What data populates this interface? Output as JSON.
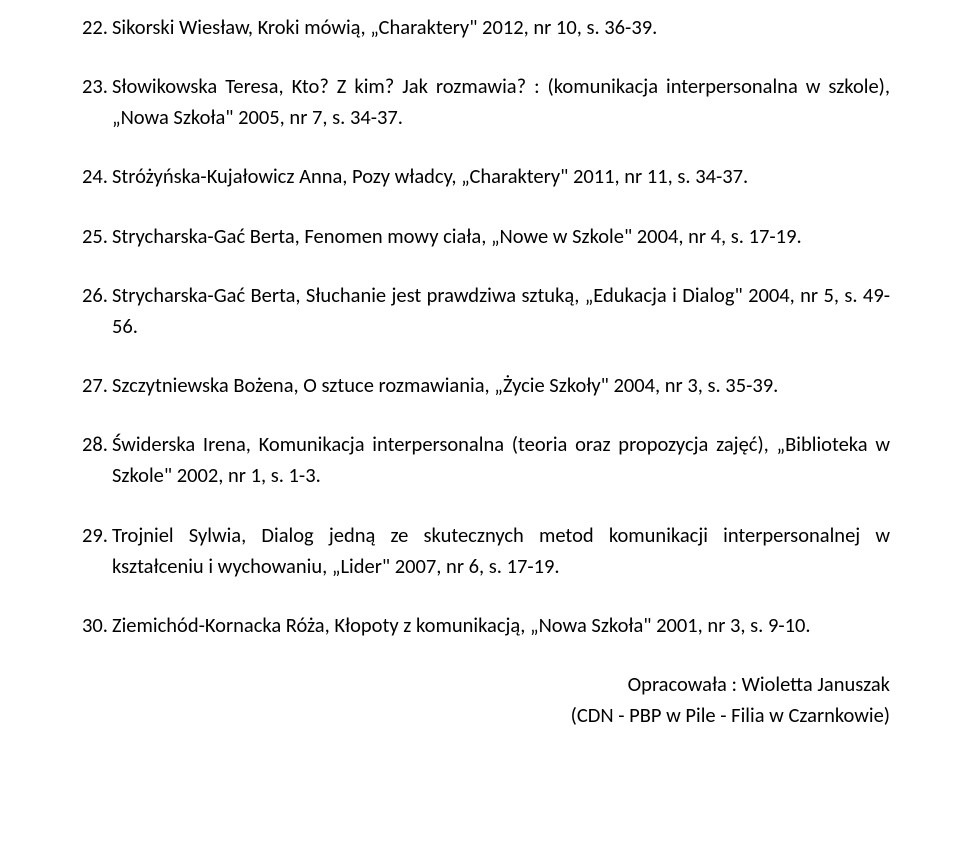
{
  "entries": [
    {
      "num": "22.",
      "text": "Sikorski Wiesław, Kroki mówią, „Charaktery\" 2012, nr 10, s. 36-39."
    },
    {
      "num": "23.",
      "text": "Słowikowska Teresa, Kto? Z kim? Jak rozmawia? : (komunikacja interpersonalna w szkole), „Nowa Szkoła\" 2005, nr 7, s. 34-37."
    },
    {
      "num": "24.",
      "text": "Stróżyńska-Kujałowicz Anna, Pozy władcy, „Charaktery\" 2011, nr 11, s. 34-37."
    },
    {
      "num": "25.",
      "text": "Strycharska-Gać Berta, Fenomen mowy ciała, „Nowe w Szkole\" 2004, nr 4, s. 17-19."
    },
    {
      "num": "26.",
      "text": "Strycharska-Gać Berta, Słuchanie jest prawdziwa sztuką, „Edukacja i Dialog\" 2004, nr 5, s. 49-56."
    },
    {
      "num": "27.",
      "text": "Szczytniewska Bożena, O sztuce rozmawiania, „Życie Szkoły\" 2004, nr 3, s. 35-39."
    },
    {
      "num": "28.",
      "text": "Świderska Irena, Komunikacja interpersonalna (teoria oraz propozycja zajęć), „Biblioteka w Szkole\" 2002, nr 1, s. 1-3."
    },
    {
      "num": "29.",
      "text": "Trojniel Sylwia, Dialog jedną ze skutecznych metod komunikacji interpersonalnej w kształceniu i wychowaniu, „Lider\" 2007, nr 6, s. 17-19."
    },
    {
      "num": "30.",
      "text": "Ziemichód-Kornacka Róża, Kłopoty z komunikacją, „Nowa Szkoła\" 2001, nr 3, s. 9-10."
    }
  ],
  "footer": {
    "line1": "Opracowała : Wioletta Januszak",
    "line2": "(CDN - PBP w Pile - Filia w Czarnkowie)"
  }
}
